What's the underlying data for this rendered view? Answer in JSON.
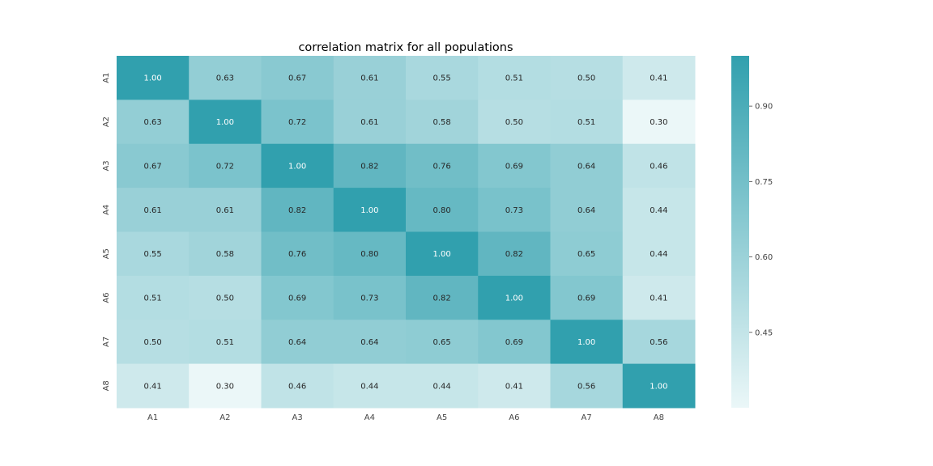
{
  "chart_data": {
    "type": "heatmap",
    "title": "correlation matrix for all populations",
    "xlabel": "",
    "ylabel": "",
    "x_labels": [
      "A1",
      "A2",
      "A3",
      "A4",
      "A5",
      "A6",
      "A7",
      "A8"
    ],
    "y_labels": [
      "A1",
      "A2",
      "A3",
      "A4",
      "A5",
      "A6",
      "A7",
      "A8"
    ],
    "values": [
      [
        1.0,
        0.63,
        0.67,
        0.61,
        0.55,
        0.51,
        0.5,
        0.41
      ],
      [
        0.63,
        1.0,
        0.72,
        0.61,
        0.58,
        0.5,
        0.51,
        0.3
      ],
      [
        0.67,
        0.72,
        1.0,
        0.82,
        0.76,
        0.69,
        0.64,
        0.46
      ],
      [
        0.61,
        0.61,
        0.82,
        1.0,
        0.8,
        0.73,
        0.64,
        0.44
      ],
      [
        0.55,
        0.58,
        0.76,
        0.8,
        1.0,
        0.82,
        0.65,
        0.44
      ],
      [
        0.51,
        0.5,
        0.69,
        0.73,
        0.82,
        1.0,
        0.69,
        0.41
      ],
      [
        0.5,
        0.51,
        0.64,
        0.64,
        0.65,
        0.69,
        1.0,
        0.56
      ],
      [
        0.41,
        0.3,
        0.46,
        0.44,
        0.44,
        0.41,
        0.56,
        1.0
      ]
    ],
    "annotation_format": "0.00",
    "colorbar": {
      "ticks": [
        0.45,
        0.6,
        0.75,
        0.9
      ],
      "tick_labels": [
        "0.45",
        "0.60",
        "0.75",
        "0.90"
      ],
      "vmin": 0.3,
      "vmax": 1.0
    },
    "colors": {
      "low": "#ebf7f8",
      "high": "#31a0ae",
      "annotation_dark": "#262626",
      "annotation_light": "#ffffff"
    }
  }
}
